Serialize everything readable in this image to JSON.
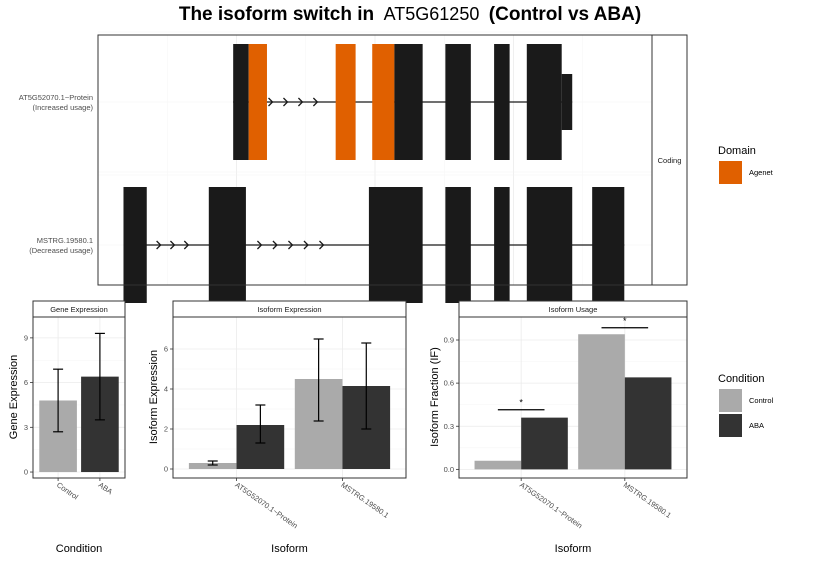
{
  "title": {
    "prefix": "The isoform switch in",
    "gene": "AT5G61250",
    "suffix": "(Control vs ABA)"
  },
  "structure": {
    "facet_label": "Coding",
    "x_range": [
      0,
      100
    ],
    "transcripts": [
      {
        "id": "AT5G52070.1~Protein",
        "usage_label": "(Increased usage)",
        "exons": [
          {
            "start": 24.4,
            "end": 27.2,
            "color": "#1a1a1a"
          },
          {
            "start": 27.2,
            "end": 30.5,
            "color": "#e06000"
          },
          {
            "start": 42.9,
            "end": 46.5,
            "color": "#e06000"
          },
          {
            "start": 49.5,
            "end": 53.5,
            "color": "#e06000"
          },
          {
            "start": 53.5,
            "end": 58.6,
            "color": "#1a1a1a"
          },
          {
            "start": 62.7,
            "end": 67.3,
            "color": "#1a1a1a"
          },
          {
            "start": 71.5,
            "end": 74.3,
            "color": "#1a1a1a"
          },
          {
            "start": 77.4,
            "end": 83.7,
            "color": "#1a1a1a"
          },
          {
            "start": 83.7,
            "end": 85.6,
            "color": "#1a1a1a",
            "half": true
          }
        ],
        "intron_arrows": [
          31.5,
          34.2,
          36.9,
          39.6
        ]
      },
      {
        "id": "MSTRG.19580.1",
        "usage_label": "(Decreased usage)",
        "exons": [
          {
            "start": 4.6,
            "end": 8.8,
            "color": "#1a1a1a"
          },
          {
            "start": 20.0,
            "end": 26.7,
            "color": "#1a1a1a"
          },
          {
            "start": 48.9,
            "end": 58.6,
            "color": "#1a1a1a"
          },
          {
            "start": 62.7,
            "end": 67.3,
            "color": "#1a1a1a"
          },
          {
            "start": 71.5,
            "end": 74.3,
            "color": "#1a1a1a"
          },
          {
            "start": 77.4,
            "end": 85.6,
            "color": "#1a1a1a"
          },
          {
            "start": 89.2,
            "end": 95.0,
            "color": "#1a1a1a"
          }
        ],
        "intron_arrows": [
          11.3,
          13.8,
          16.3,
          29.5,
          32.3,
          35.1,
          37.9,
          40.7
        ]
      }
    ]
  },
  "legend_domain": {
    "title": "Domain",
    "items": [
      {
        "label": "Agenet",
        "color": "#e06000"
      }
    ]
  },
  "legend_condition": {
    "title": "Condition",
    "items": [
      {
        "label": "Control",
        "color": "#aaaaaa"
      },
      {
        "label": "ABA",
        "color": "#333333"
      }
    ]
  },
  "chart_data": [
    {
      "type": "bar",
      "title": "Gene Expression",
      "xlabel": "Condition",
      "ylabel": "Gene Expression",
      "categories": [
        "Control",
        "ABA"
      ],
      "values": [
        4.8,
        6.4
      ],
      "error": [
        [
          2.7,
          6.9
        ],
        [
          3.5,
          9.3
        ]
      ],
      "colors": [
        "#aaaaaa",
        "#333333"
      ],
      "ylim": [
        -0.4,
        10.4
      ],
      "yticks": [
        0,
        3,
        6,
        9
      ]
    },
    {
      "type": "bar",
      "title": "Isoform Expression",
      "xlabel": "Isoform",
      "ylabel": "Isoform Expression",
      "categories": [
        "AT5G52070.1~Protein",
        "MSTRG.19580.1"
      ],
      "series": [
        {
          "name": "Control",
          "values": [
            0.3,
            4.5
          ],
          "error": [
            [
              0.2,
              0.4
            ],
            [
              2.4,
              6.5
            ]
          ]
        },
        {
          "name": "ABA",
          "values": [
            2.2,
            4.15
          ],
          "error": [
            [
              1.3,
              3.2
            ],
            [
              2.0,
              6.3
            ]
          ]
        }
      ],
      "ylim": [
        -0.45,
        7.6
      ],
      "yticks": [
        0,
        2,
        4,
        6
      ]
    },
    {
      "type": "bar",
      "title": "Isoform Usage",
      "xlabel": "Isoform",
      "ylabel": "Isoform Fraction (IF)",
      "categories": [
        "AT5G52070.1~Protein",
        "MSTRG.19580.1"
      ],
      "series": [
        {
          "name": "Control",
          "values": [
            0.06,
            0.94
          ]
        },
        {
          "name": "ABA",
          "values": [
            0.36,
            0.64
          ]
        }
      ],
      "significance": [
        {
          "category": 0,
          "y": 0.415,
          "label": "*"
        },
        {
          "category": 1,
          "y": 0.985,
          "label": "*"
        }
      ],
      "ylim": [
        -0.06,
        1.06
      ],
      "yticks": [
        0.0,
        0.3,
        0.6,
        0.9
      ],
      "ytick_labels": [
        "0.0",
        "0.3",
        "0.6",
        "0.9"
      ]
    }
  ]
}
